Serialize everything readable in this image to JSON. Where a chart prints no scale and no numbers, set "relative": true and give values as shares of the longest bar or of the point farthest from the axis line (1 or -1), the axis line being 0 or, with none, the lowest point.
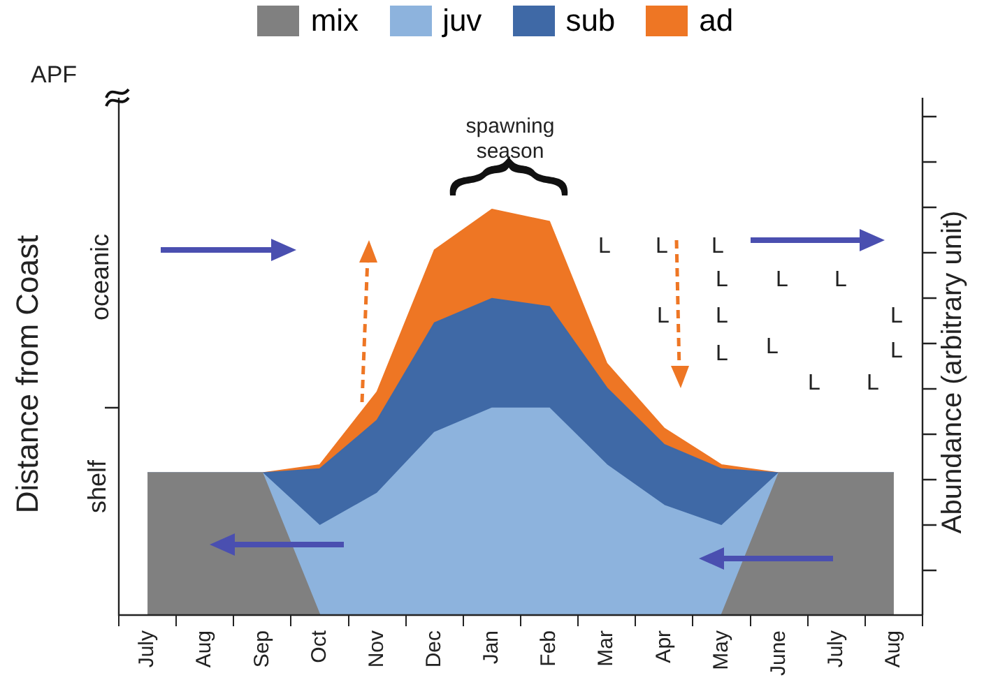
{
  "chart_data": {
    "type": "area",
    "stacked": true,
    "relative": true,
    "categories": [
      "July",
      "Aug",
      "Sep",
      "Oct",
      "Nov",
      "Dec",
      "Jan",
      "Feb",
      "Mar",
      "Apr",
      "May",
      "June",
      "July",
      "Aug"
    ],
    "series": [
      {
        "name": "mix",
        "color": "#808080",
        "values": [
          0.35,
          0.35,
          0.35,
          0,
          0,
          0,
          0,
          0,
          0,
          0,
          0,
          0.35,
          0.35,
          0.35
        ]
      },
      {
        "name": "juv",
        "color": "#8db3dd",
        "values": [
          0,
          0,
          0,
          0.22,
          0.3,
          0.45,
          0.51,
          0.51,
          0.37,
          0.27,
          0.22,
          0,
          0,
          0
        ]
      },
      {
        "name": "sub",
        "color": "#3f69a6",
        "values": [
          0,
          0,
          0,
          0.14,
          0.18,
          0.27,
          0.27,
          0.25,
          0.19,
          0.15,
          0.14,
          0,
          0,
          0
        ]
      },
      {
        "name": "ad",
        "color": "#ee7624",
        "values": [
          0,
          0,
          0,
          0.01,
          0.07,
          0.18,
          0.22,
          0.21,
          0.06,
          0.04,
          0.01,
          0,
          0,
          0
        ]
      }
    ],
    "ylabel": "Distance from  Coast",
    "y2label": "Abundance  (arbitrary unit)",
    "annotations": [
      "APF",
      "oceanic",
      "shelf",
      "spawning season",
      "L",
      "L",
      "L",
      "L",
      "L",
      "L",
      "L",
      "L",
      "L",
      "L",
      "L",
      "L",
      "L",
      "L"
    ],
    "legend": "top",
    "grid": false
  }
}
